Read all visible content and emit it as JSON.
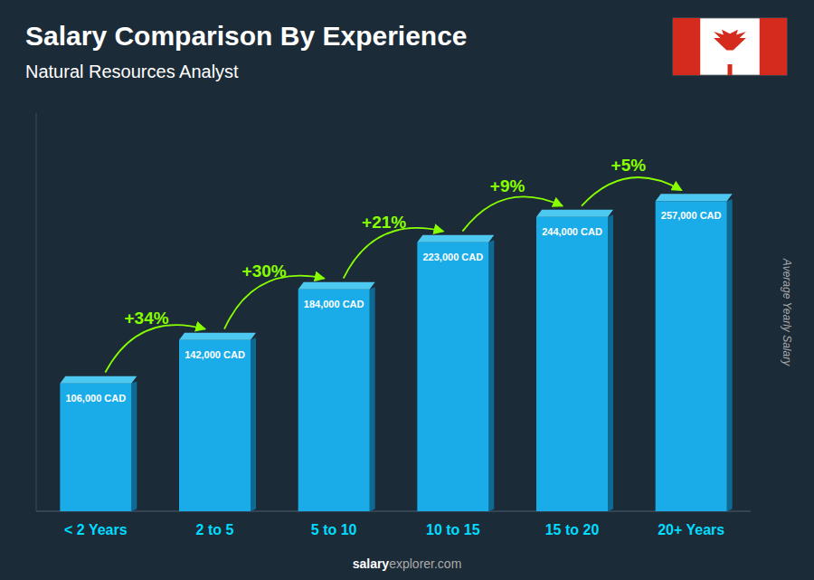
{
  "chart_data": {
    "type": "bar",
    "title": "Salary Comparison By Experience",
    "subtitle": "Natural Resources Analyst",
    "ylabel": "Average Yearly Salary",
    "footer": [
      "salary",
      "explorer.com"
    ],
    "categories": [
      "< 2 Years",
      "2 to 5",
      "5 to 10",
      "10 to 15",
      "15 to 20",
      "20+ Years"
    ],
    "values": [
      106000,
      142000,
      184000,
      223000,
      244000,
      257000
    ],
    "value_labels": [
      "106,000 CAD",
      "142,000 CAD",
      "184,000 CAD",
      "223,000 CAD",
      "244,000 CAD",
      "257,000 CAD"
    ],
    "annotations": [
      "+34%",
      "+30%",
      "+21%",
      "+9%",
      "+5%"
    ],
    "color": "#1AACE8",
    "ylim": [
      0,
      330000
    ],
    "grid": false,
    "data_labels": true,
    "tick_labels": "x"
  }
}
